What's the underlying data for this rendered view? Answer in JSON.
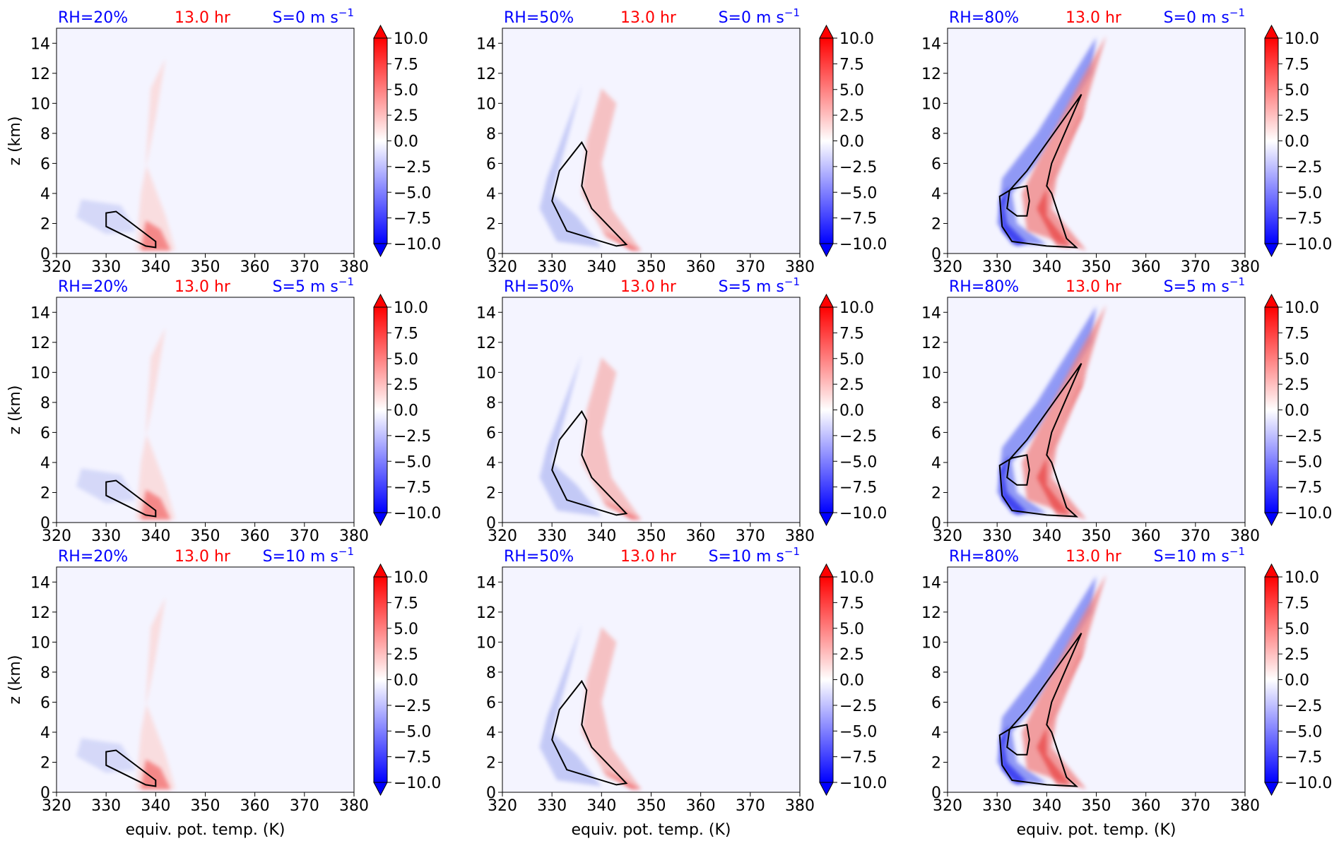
{
  "figure": {
    "xlabel": "equiv. pot. temp. (K)",
    "ylabel": "z (km)",
    "time_label": "13.0 hr",
    "colors": {
      "label_blue": "#0000ff",
      "label_red": "#ff0000",
      "background": "#f4f4ff",
      "contour": "#000000"
    }
  },
  "chart_data": [
    {
      "type": "contour",
      "row": 0,
      "col": 0,
      "rh_label": "RH=20%",
      "time_label": "13.0 hr",
      "shear_label": "S=0 m s",
      "shear_exp": "−1",
      "xlim": [
        320,
        380
      ],
      "ylim": [
        0,
        15
      ],
      "xticks": [
        320,
        330,
        340,
        350,
        360,
        370,
        380
      ],
      "yticks": [
        0,
        2,
        4,
        6,
        8,
        10,
        12,
        14
      ],
      "colorbar_ticks": [
        "10.0",
        "7.5",
        "5.0",
        "2.5",
        "0.0",
        "−2.5",
        "−5.0",
        "−7.5",
        "−10.0"
      ],
      "colorbar_range": [
        -10,
        10
      ]
    },
    {
      "type": "contour",
      "row": 0,
      "col": 1,
      "rh_label": "RH=50%",
      "time_label": "13.0 hr",
      "shear_label": "S=0 m s",
      "shear_exp": "−1",
      "xlim": [
        320,
        380
      ],
      "ylim": [
        0,
        15
      ],
      "xticks": [
        320,
        330,
        340,
        350,
        360,
        370,
        380
      ],
      "yticks": [
        0,
        2,
        4,
        6,
        8,
        10,
        12,
        14
      ],
      "colorbar_ticks": [
        "10.0",
        "7.5",
        "5.0",
        "2.5",
        "0.0",
        "−2.5",
        "−5.0",
        "−7.5",
        "−10.0"
      ],
      "colorbar_range": [
        -10,
        10
      ]
    },
    {
      "type": "contour",
      "row": 0,
      "col": 2,
      "rh_label": "RH=80%",
      "time_label": "13.0 hr",
      "shear_label": "S=0 m s",
      "shear_exp": "−1",
      "xlim": [
        320,
        380
      ],
      "ylim": [
        0,
        15
      ],
      "xticks": [
        320,
        330,
        340,
        350,
        360,
        370,
        380
      ],
      "yticks": [
        0,
        2,
        4,
        6,
        8,
        10,
        12,
        14
      ],
      "colorbar_ticks": [
        "10.0",
        "7.5",
        "5.0",
        "2.5",
        "0.0",
        "−2.5",
        "−5.0",
        "−7.5",
        "−10.0"
      ],
      "colorbar_range": [
        -10,
        10
      ]
    },
    {
      "type": "contour",
      "row": 1,
      "col": 0,
      "rh_label": "RH=20%",
      "time_label": "13.0 hr",
      "shear_label": "S=5 m s",
      "shear_exp": "−1",
      "xlim": [
        320,
        380
      ],
      "ylim": [
        0,
        15
      ],
      "xticks": [
        320,
        330,
        340,
        350,
        360,
        370,
        380
      ],
      "yticks": [
        0,
        2,
        4,
        6,
        8,
        10,
        12,
        14
      ],
      "colorbar_ticks": [
        "10.0",
        "7.5",
        "5.0",
        "2.5",
        "0.0",
        "−2.5",
        "−5.0",
        "−7.5",
        "−10.0"
      ],
      "colorbar_range": [
        -10,
        10
      ]
    },
    {
      "type": "contour",
      "row": 1,
      "col": 1,
      "rh_label": "RH=50%",
      "time_label": "13.0 hr",
      "shear_label": "S=5 m s",
      "shear_exp": "−1",
      "xlim": [
        320,
        380
      ],
      "ylim": [
        0,
        15
      ],
      "xticks": [
        320,
        330,
        340,
        350,
        360,
        370,
        380
      ],
      "yticks": [
        0,
        2,
        4,
        6,
        8,
        10,
        12,
        14
      ],
      "colorbar_ticks": [
        "10.0",
        "7.5",
        "5.0",
        "2.5",
        "0.0",
        "−2.5",
        "−5.0",
        "−7.5",
        "−10.0"
      ],
      "colorbar_range": [
        -10,
        10
      ]
    },
    {
      "type": "contour",
      "row": 1,
      "col": 2,
      "rh_label": "RH=80%",
      "time_label": "13.0 hr",
      "shear_label": "S=5 m s",
      "shear_exp": "−1",
      "xlim": [
        320,
        380
      ],
      "ylim": [
        0,
        15
      ],
      "xticks": [
        320,
        330,
        340,
        350,
        360,
        370,
        380
      ],
      "yticks": [
        0,
        2,
        4,
        6,
        8,
        10,
        12,
        14
      ],
      "colorbar_ticks": [
        "10.0",
        "7.5",
        "5.0",
        "2.5",
        "0.0",
        "−2.5",
        "−5.0",
        "−7.5",
        "−10.0"
      ],
      "colorbar_range": [
        -10,
        10
      ]
    },
    {
      "type": "contour",
      "row": 2,
      "col": 0,
      "rh_label": "RH=20%",
      "time_label": "13.0 hr",
      "shear_label": "S=10 m s",
      "shear_exp": "−1",
      "xlim": [
        320,
        380
      ],
      "ylim": [
        0,
        15
      ],
      "xticks": [
        320,
        330,
        340,
        350,
        360,
        370,
        380
      ],
      "yticks": [
        0,
        2,
        4,
        6,
        8,
        10,
        12,
        14
      ],
      "colorbar_ticks": [
        "10.0",
        "7.5",
        "5.0",
        "2.5",
        "0.0",
        "−2.5",
        "−5.0",
        "−7.5",
        "−10.0"
      ],
      "colorbar_range": [
        -10,
        10
      ]
    },
    {
      "type": "contour",
      "row": 2,
      "col": 1,
      "rh_label": "RH=50%",
      "time_label": "13.0 hr",
      "shear_label": "S=10 m s",
      "shear_exp": "−1",
      "xlim": [
        320,
        380
      ],
      "ylim": [
        0,
        15
      ],
      "xticks": [
        320,
        330,
        340,
        350,
        360,
        370,
        380
      ],
      "yticks": [
        0,
        2,
        4,
        6,
        8,
        10,
        12,
        14
      ],
      "colorbar_ticks": [
        "10.0",
        "7.5",
        "5.0",
        "2.5",
        "0.0",
        "−2.5",
        "−5.0",
        "−7.5",
        "−10.0"
      ],
      "colorbar_range": [
        -10,
        10
      ]
    },
    {
      "type": "contour",
      "row": 2,
      "col": 2,
      "rh_label": "RH=80%",
      "time_label": "13.0 hr",
      "shear_label": "S=10 m s",
      "shear_exp": "−1",
      "xlim": [
        320,
        380
      ],
      "ylim": [
        0,
        15
      ],
      "xticks": [
        320,
        330,
        340,
        350,
        360,
        370,
        380
      ],
      "yticks": [
        0,
        2,
        4,
        6,
        8,
        10,
        12,
        14
      ],
      "colorbar_ticks": [
        "10.0",
        "7.5",
        "5.0",
        "2.5",
        "0.0",
        "−2.5",
        "−5.0",
        "−7.5",
        "−10.0"
      ],
      "colorbar_range": [
        -10,
        10
      ]
    }
  ]
}
